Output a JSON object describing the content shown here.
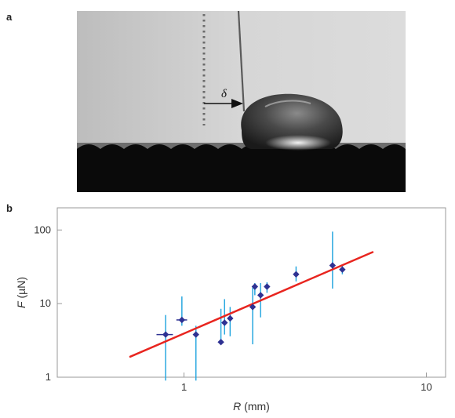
{
  "panels": {
    "a": {
      "label": "a",
      "annotation": "δ"
    },
    "b": {
      "label": "b"
    }
  },
  "chart_data": {
    "type": "scatter",
    "title": "",
    "xlabel_var": "R",
    "xlabel_unit": " (mm)",
    "ylabel_var": "F",
    "ylabel_unit": " (µN)",
    "xscale": "log",
    "yscale": "log",
    "xlim": [
      0.3,
      12
    ],
    "ylim": [
      1,
      200
    ],
    "xticks": [
      1,
      10
    ],
    "xtick_labels": [
      "1",
      "10"
    ],
    "yticks": [
      1,
      10,
      100
    ],
    "ytick_labels": [
      "1",
      "10",
      "100"
    ],
    "grid": false,
    "colors": {
      "points": "#2e3192",
      "errorbars": "#29a8e0",
      "fit": "#e8251f",
      "frame": "#999999"
    },
    "series": [
      {
        "points": [
          {
            "x": 0.84,
            "y": 3.8,
            "ylo": 0.9,
            "yhi": 7.0,
            "xlo": 0.77,
            "xhi": 0.9
          },
          {
            "x": 0.98,
            "y": 6.0,
            "ylo": 5.0,
            "yhi": 12.5,
            "xlo": 0.93,
            "xhi": 1.03
          },
          {
            "x": 1.12,
            "y": 3.8,
            "ylo": 0.9,
            "yhi": 5.0
          },
          {
            "x": 1.42,
            "y": 3.0,
            "ylo": 2.8,
            "yhi": 8.5
          },
          {
            "x": 1.47,
            "y": 5.5,
            "ylo": 3.8,
            "yhi": 11.5
          },
          {
            "x": 1.55,
            "y": 6.3,
            "ylo": 3.6,
            "yhi": 9.0
          },
          {
            "x": 1.92,
            "y": 9.0,
            "ylo": 2.8,
            "yhi": 16.5
          },
          {
            "x": 1.96,
            "y": 17.0,
            "ylo": 13.0,
            "yhi": 19.0
          },
          {
            "x": 2.07,
            "y": 13.0,
            "ylo": 6.5,
            "yhi": 19.0
          },
          {
            "x": 2.2,
            "y": 17.0,
            "ylo": 14.0,
            "yhi": 19.5
          },
          {
            "x": 2.9,
            "y": 25.0,
            "ylo": 20.0,
            "yhi": 32.0
          },
          {
            "x": 4.1,
            "y": 33.0,
            "ylo": 16.0,
            "yhi": 95.0
          },
          {
            "x": 4.5,
            "y": 29.0,
            "ylo": 25.0,
            "yhi": 34.0
          }
        ]
      }
    ],
    "fit_line": {
      "x": [
        0.6,
        6.0
      ],
      "y": [
        1.9,
        50.0
      ]
    }
  }
}
